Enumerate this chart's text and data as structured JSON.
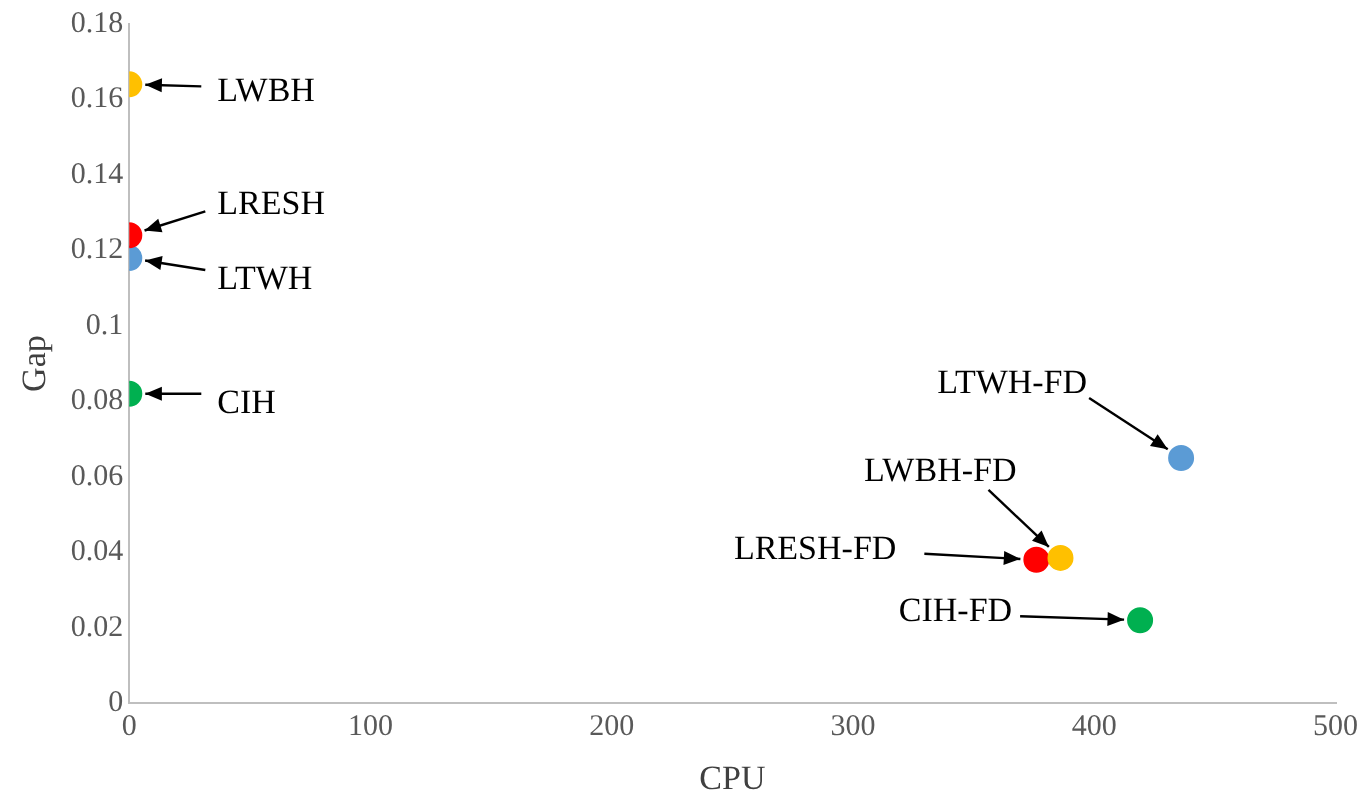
{
  "chart_data": {
    "type": "scatter",
    "xlabel": "CPU",
    "ylabel": "Gap",
    "xlim": [
      0,
      500
    ],
    "xticks": [
      0,
      100,
      200,
      300,
      400,
      500
    ],
    "ylim": [
      0,
      0.18
    ],
    "yticks": [
      0,
      0.02,
      0.04,
      0.06,
      0.08,
      0.1,
      0.12,
      0.14,
      0.16,
      0.18
    ],
    "grid": false,
    "legend": false,
    "marker": "circle",
    "series": [
      {
        "color": "#ffc000",
        "x": [
          0,
          386
        ],
        "values": [
          0.164,
          0.0385
        ]
      },
      {
        "color": "#ff0000",
        "x": [
          0,
          376
        ],
        "values": [
          0.124,
          0.038
        ]
      },
      {
        "color": "#5b9bd5",
        "x": [
          0,
          436
        ],
        "values": [
          0.118,
          0.065
        ]
      },
      {
        "color": "#00b050",
        "x": [
          0,
          419
        ],
        "values": [
          0.082,
          0.022
        ]
      }
    ],
    "annotations": [
      {
        "text": "LWBH",
        "x": 0,
        "y": 0.164
      },
      {
        "text": "LRESH",
        "x": 0,
        "y": 0.124
      },
      {
        "text": "LTWH",
        "x": 0,
        "y": 0.118
      },
      {
        "text": "CIH",
        "x": 0,
        "y": 0.082
      },
      {
        "text": "LTWH-FD",
        "x": 436,
        "y": 0.065
      },
      {
        "text": "LWBH-FD",
        "x": 386,
        "y": 0.0385
      },
      {
        "text": "LRESH-FD",
        "x": 376,
        "y": 0.038
      },
      {
        "text": "CIH-FD",
        "x": 419,
        "y": 0.022
      }
    ]
  }
}
